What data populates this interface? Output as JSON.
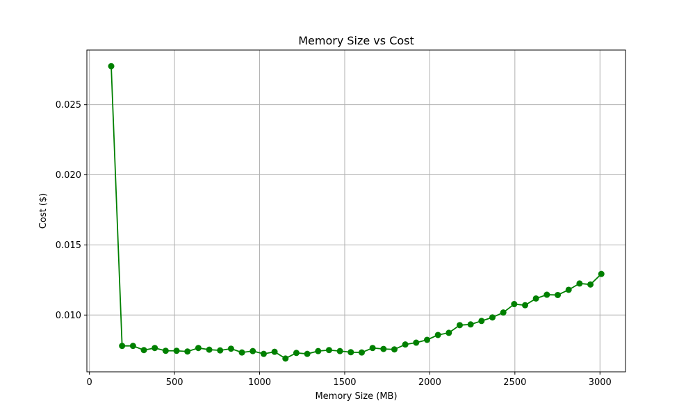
{
  "colors": {
    "series": "#008000",
    "grid": "#b0b0b0",
    "axis": "#000000",
    "background": "#ffffff"
  },
  "chart_data": {
    "type": "line",
    "title": "Memory Size vs Cost",
    "xlabel": "Memory Size (MB)",
    "ylabel": "Cost ($)",
    "xlim": [
      -15,
      3150
    ],
    "ylim": [
      0.00595,
      0.0289
    ],
    "xticks": [
      0,
      500,
      1000,
      1500,
      2000,
      2500,
      3000
    ],
    "xtick_labels": [
      "0",
      "500",
      "1000",
      "1500",
      "2000",
      "2500",
      "3000"
    ],
    "yticks": [
      0.01,
      0.015,
      0.02,
      0.025
    ],
    "ytick_labels": [
      "0.010",
      "0.015",
      "0.020",
      "0.025"
    ],
    "grid": true,
    "marker": "circle",
    "series": [
      {
        "name": "Cost",
        "x": [
          128,
          192,
          256,
          320,
          384,
          448,
          512,
          576,
          640,
          704,
          768,
          832,
          896,
          960,
          1024,
          1088,
          1152,
          1216,
          1280,
          1344,
          1408,
          1472,
          1536,
          1600,
          1664,
          1728,
          1792,
          1856,
          1920,
          1984,
          2048,
          2112,
          2176,
          2240,
          2304,
          2368,
          2432,
          2496,
          2560,
          2624,
          2688,
          2752,
          2816,
          2880,
          2944,
          3008
        ],
        "values": [
          0.02775,
          0.0078,
          0.0078,
          0.0075,
          0.00765,
          0.00745,
          0.00745,
          0.0074,
          0.00765,
          0.00753,
          0.00748,
          0.0076,
          0.00733,
          0.00743,
          0.00723,
          0.00738,
          0.0069,
          0.0073,
          0.00723,
          0.00743,
          0.0075,
          0.00743,
          0.00735,
          0.00733,
          0.00765,
          0.00758,
          0.00755,
          0.0079,
          0.00803,
          0.00823,
          0.00858,
          0.00873,
          0.00928,
          0.00933,
          0.00958,
          0.00983,
          0.01018,
          0.01078,
          0.0107,
          0.01118,
          0.01145,
          0.01143,
          0.0118,
          0.01225,
          0.01218,
          0.01293
        ]
      }
    ]
  }
}
